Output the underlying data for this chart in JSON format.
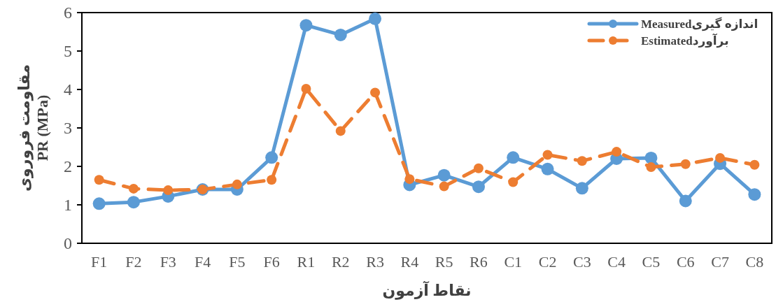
{
  "chart_data": {
    "type": "line",
    "xlabel": "نقاط آزمون",
    "ylabel": "مقاومت فروروی PR (MPa)",
    "categories": [
      "F1",
      "F2",
      "F3",
      "F4",
      "F5",
      "F6",
      "R1",
      "R2",
      "R3",
      "R4",
      "R5",
      "R6",
      "C1",
      "C2",
      "C3",
      "C4",
      "C5",
      "C6",
      "C7",
      "C8"
    ],
    "ylim": [
      0,
      6
    ],
    "yticks": [
      0,
      1,
      2,
      3,
      4,
      5,
      6
    ],
    "grid": false,
    "legend": "top right",
    "marker": "circle",
    "series": [
      {
        "name": "Measuredاندازه گیری",
        "color": "#5b9bd5",
        "line_style": "solid",
        "values": [
          1.03,
          1.07,
          1.22,
          1.4,
          1.4,
          2.23,
          5.67,
          5.42,
          5.84,
          1.52,
          1.77,
          1.47,
          2.23,
          1.93,
          1.43,
          2.2,
          2.22,
          1.1,
          2.07,
          1.27
        ]
      },
      {
        "name": "Estimatedبرآورد",
        "color": "#ed7d31",
        "line_style": "dashed",
        "values": [
          1.65,
          1.42,
          1.38,
          1.4,
          1.53,
          1.65,
          4.02,
          2.92,
          3.92,
          1.67,
          1.48,
          1.95,
          1.59,
          2.3,
          2.14,
          2.38,
          1.98,
          2.06,
          2.22,
          2.04
        ]
      }
    ]
  }
}
